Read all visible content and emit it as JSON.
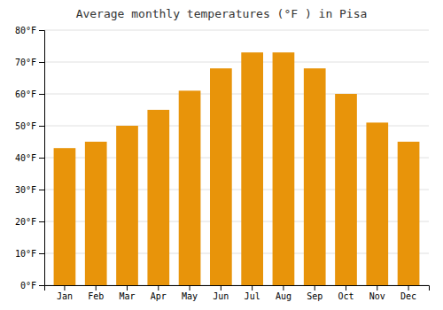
{
  "chart_data": {
    "type": "bar",
    "title": "Average monthly temperatures (°F ) in Pisa",
    "categories": [
      "Jan",
      "Feb",
      "Mar",
      "Apr",
      "May",
      "Jun",
      "Jul",
      "Aug",
      "Sep",
      "Oct",
      "Nov",
      "Dec"
    ],
    "values": [
      43,
      45,
      50,
      55,
      61,
      68,
      73,
      73,
      68,
      60,
      51,
      45
    ],
    "color": "#E8940A",
    "ylim": [
      0,
      80
    ],
    "yticks": [
      {
        "value": 0,
        "label": "0°F"
      },
      {
        "value": 10,
        "label": "10°F"
      },
      {
        "value": 20,
        "label": "20°F"
      },
      {
        "value": 30,
        "label": "30°F"
      },
      {
        "value": 40,
        "label": "40°F"
      },
      {
        "value": 50,
        "label": "50°F"
      },
      {
        "value": 60,
        "label": "60°F"
      },
      {
        "value": 70,
        "label": "70°F"
      },
      {
        "value": 80,
        "label": "80°F"
      }
    ],
    "grid": true
  }
}
